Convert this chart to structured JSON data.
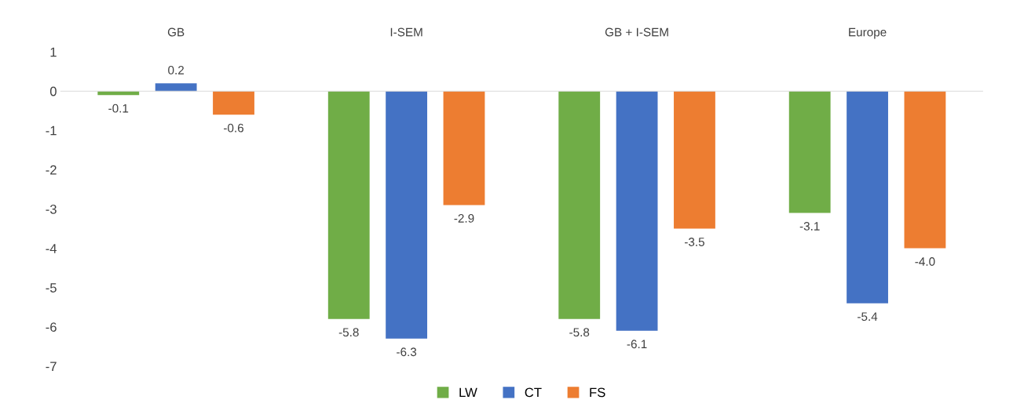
{
  "chart_data": {
    "type": "bar",
    "categories": [
      "GB",
      "I-SEM",
      "GB + I-SEM",
      "Europe"
    ],
    "series": [
      {
        "name": "LW",
        "color": "#70ad47",
        "values": [
          -0.1,
          -5.8,
          -5.8,
          -3.1
        ],
        "value_labels": [
          "-0.1",
          "-5.8",
          "-5.8",
          "-3.1"
        ]
      },
      {
        "name": "CT",
        "color": "#4472c4",
        "values": [
          0.2,
          -6.3,
          -6.1,
          -5.4
        ],
        "value_labels": [
          "0.2",
          "-6.3",
          "-6.1",
          "-5.4"
        ]
      },
      {
        "name": "FS",
        "color": "#ed7d31",
        "values": [
          -0.6,
          -2.9,
          -3.5,
          -4.0
        ],
        "value_labels": [
          "-0.6",
          "-2.9",
          "-3.5",
          "-4.0"
        ]
      }
    ],
    "ylim": [
      -7,
      1
    ],
    "yticks": [
      1,
      0,
      -1,
      -2,
      -3,
      -4,
      -5,
      -6,
      -7
    ],
    "legend": "bottom"
  }
}
